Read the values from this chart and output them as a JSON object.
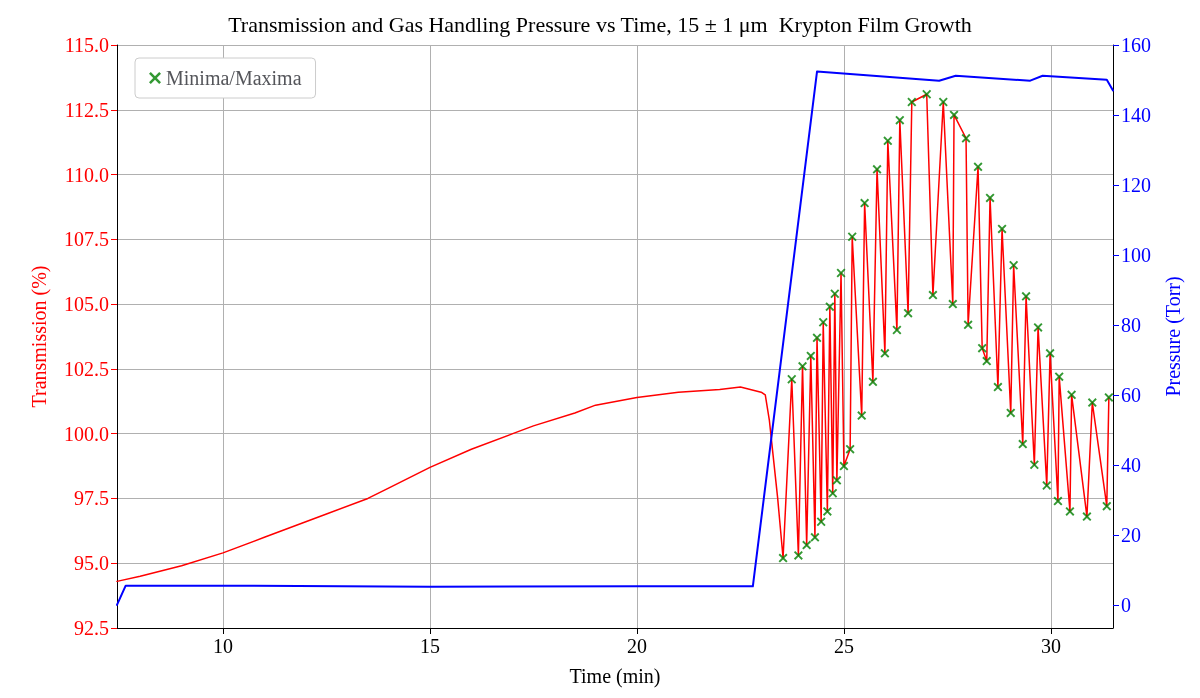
{
  "chart_data": {
    "type": "line",
    "title": "Transmission and Gas Handling Pressure vs Time, 15 ± 1 μm  Krypton Film Growth",
    "xlabel": "Time (min)",
    "ylabel": "Transmission (%)",
    "y2label": "Pressure (Torr)",
    "xlim": [
      7.44,
      31.5
    ],
    "xticks": [
      10,
      15,
      20,
      25,
      30
    ],
    "ylim": [
      92.5,
      115
    ],
    "yticks": [
      92.5,
      {
        "value": 95,
        "label": "95.0"
      },
      97.5,
      {
        "value": 100,
        "label": "100.0"
      },
      102.5,
      {
        "value": 105,
        "label": "105.0"
      },
      107.5,
      {
        "value": 110,
        "label": "110.0"
      },
      112.5,
      {
        "value": 115,
        "label": "115.0"
      }
    ],
    "y2lim": [
      -6.6,
      160
    ],
    "y2ticks": [
      0,
      20,
      40,
      60,
      80,
      100,
      120,
      140,
      160
    ],
    "grid": true,
    "legend": "top left",
    "line_style": "solid",
    "marker": "none",
    "series": [
      {
        "color": "#ff0000",
        "x": [
          7.44,
          8,
          9,
          10,
          11,
          12,
          12.5,
          13.5,
          14,
          15,
          16,
          17,
          17.5,
          18.5,
          19,
          20,
          21,
          22,
          22.5,
          23.0,
          23.1,
          23.2,
          23.3,
          23.4,
          23.53,
          23.74,
          23.9,
          24.0,
          24.1,
          24.2,
          24.3,
          24.35,
          24.45,
          24.5,
          24.6,
          24.66,
          24.73,
          24.78,
          24.83,
          24.93,
          25.0,
          25.15,
          25.2,
          25.43,
          25.5,
          25.7,
          25.8,
          25.99,
          26.06,
          26.28,
          26.35,
          26.55,
          26.64,
          27.0,
          27.15,
          27.4,
          27.63,
          27.66,
          27.95,
          28.0,
          28.24,
          28.34,
          28.45,
          28.53,
          28.72,
          28.82,
          29.03,
          29.1,
          29.32,
          29.4,
          29.6,
          29.69,
          29.9,
          29.98,
          30.17,
          30.2,
          30.46,
          30.5,
          30.87,
          31.0,
          31.35,
          31.4
        ],
        "values": [
          94.3,
          94.5,
          94.9,
          95.4,
          96.0,
          96.6,
          96.9,
          97.5,
          97.9,
          98.7,
          99.4,
          100.0,
          100.3,
          100.8,
          101.1,
          101.4,
          101.6,
          101.7,
          101.8,
          101.6,
          101.5,
          100.5,
          99.0,
          97.5,
          95.2,
          102.1,
          95.3,
          102.6,
          95.7,
          103.0,
          96.0,
          103.7,
          96.6,
          104.3,
          97.0,
          104.9,
          97.7,
          105.4,
          98.2,
          106.2,
          98.75,
          99.4,
          107.6,
          100.7,
          108.9,
          102.0,
          110.2,
          103.1,
          111.3,
          104.0,
          112.1,
          104.65,
          112.8,
          113.1,
          105.35,
          112.8,
          105.0,
          112.3,
          111.4,
          104.2,
          110.3,
          103.3,
          102.8,
          109.1,
          101.8,
          107.9,
          100.8,
          106.5,
          99.6,
          105.3,
          98.8,
          104.1,
          98.0,
          103.1,
          97.4,
          102.2,
          97.0,
          101.5,
          96.8,
          101.2,
          97.2,
          101.4
        ]
      },
      {
        "type": "scatter",
        "name": "Minima/Maxima",
        "color": "#008000",
        "marker": "cross",
        "x": [
          23.53,
          23.74,
          23.9,
          24.0,
          24.1,
          24.2,
          24.3,
          24.35,
          24.45,
          24.5,
          24.6,
          24.66,
          24.73,
          24.78,
          24.83,
          24.93,
          25.0,
          25.15,
          25.2,
          25.43,
          25.5,
          25.7,
          25.8,
          25.99,
          26.06,
          26.28,
          26.35,
          26.55,
          26.64,
          27.0,
          27.15,
          27.4,
          27.63,
          27.66,
          27.95,
          28.0,
          28.24,
          28.34,
          28.45,
          28.53,
          28.72,
          28.82,
          29.03,
          29.1,
          29.32,
          29.4,
          29.6,
          29.69,
          29.9,
          29.98,
          30.17,
          30.2,
          30.46,
          30.5,
          30.87,
          31.0,
          31.35,
          31.4
        ],
        "values": [
          95.2,
          102.1,
          95.3,
          102.6,
          95.7,
          103.0,
          96.0,
          103.7,
          96.6,
          104.3,
          97.0,
          104.9,
          97.7,
          105.4,
          98.2,
          106.2,
          98.75,
          99.4,
          107.6,
          100.7,
          108.9,
          102.0,
          110.2,
          103.1,
          111.3,
          104.0,
          112.1,
          104.65,
          112.8,
          113.1,
          105.35,
          112.8,
          105.0,
          112.3,
          111.4,
          104.2,
          110.3,
          103.3,
          102.8,
          109.1,
          101.8,
          107.9,
          100.8,
          106.5,
          99.6,
          105.3,
          98.8,
          104.1,
          98.0,
          103.1,
          97.4,
          102.2,
          97.0,
          101.5,
          96.8,
          101.2,
          97.2,
          101.4
        ]
      },
      {
        "axis": "y2",
        "color": "#0000ff",
        "x": [
          7.44,
          7.65,
          10,
          15,
          20,
          22.8,
          24.35,
          27.3,
          27.7,
          29.5,
          29.8,
          31.35,
          31.5
        ],
        "values": [
          0,
          5.5,
          5.5,
          5.2,
          5.3,
          5.3,
          152.4,
          149.8,
          151.2,
          149.8,
          151.2,
          150.1,
          147
        ]
      }
    ]
  }
}
